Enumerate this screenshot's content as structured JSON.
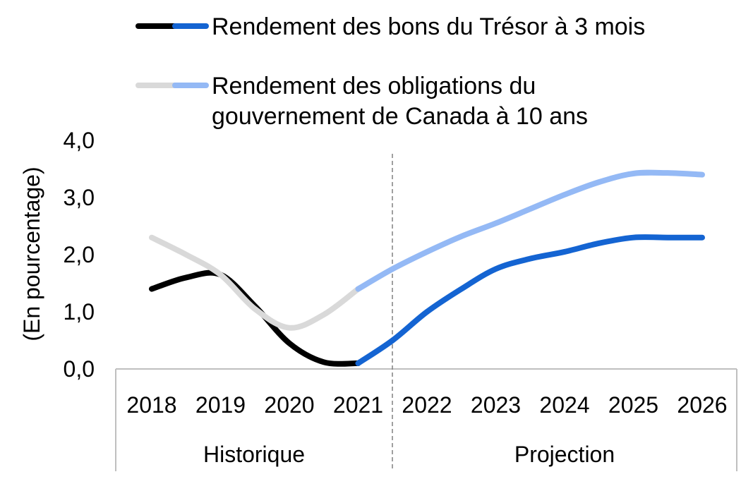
{
  "chart_data": {
    "type": "line",
    "categories": [
      "2018",
      "2019",
      "2020",
      "2021",
      "2022",
      "2023",
      "2024",
      "2025",
      "2026"
    ],
    "x": [
      2018,
      2019,
      2020,
      2021,
      2022,
      2023,
      2024,
      2025,
      2026
    ],
    "ylabel": "(En pourcentage)",
    "ylim": [
      0,
      4
    ],
    "yticks": [
      0,
      1,
      2,
      3,
      4
    ],
    "ytick_labels": [
      "0,0",
      "1,0",
      "2,0",
      "3,0",
      "4,0"
    ],
    "groups": [
      {
        "label": "Historique",
        "categories": [
          "2018",
          "2019",
          "2020",
          "2021"
        ]
      },
      {
        "label": "Projection",
        "categories": [
          "2022",
          "2023",
          "2024",
          "2025",
          "2026"
        ]
      }
    ],
    "projection_divider": "between 2021 and 2022",
    "legend_position": "top",
    "grid": false,
    "series": [
      {
        "name": "Rendement des bons du Trésor à 3 mois",
        "historical_color": "#000000",
        "projection_color": "#1464d2",
        "points": [
          [
            2018,
            1.4
          ],
          [
            2018.5,
            1.6
          ],
          [
            2019,
            1.65
          ],
          [
            2019.5,
            1.1
          ],
          [
            2020,
            0.45
          ],
          [
            2020.5,
            0.12
          ],
          [
            2021,
            0.1
          ],
          [
            2021.5,
            0.5
          ],
          [
            2022,
            1.0
          ],
          [
            2022.5,
            1.4
          ],
          [
            2023,
            1.75
          ],
          [
            2023.5,
            1.93
          ],
          [
            2024,
            2.05
          ],
          [
            2024.5,
            2.2
          ],
          [
            2025,
            2.3
          ],
          [
            2025.5,
            2.3
          ],
          [
            2026,
            2.3
          ]
        ]
      },
      {
        "name": "Rendement des obligations du gouvernement de Canada à 10 ans",
        "historical_color": "#d9d9d9",
        "projection_color": "#94b9f5",
        "points": [
          [
            2018,
            2.3
          ],
          [
            2018.5,
            2.0
          ],
          [
            2019,
            1.65
          ],
          [
            2019.5,
            1.05
          ],
          [
            2020,
            0.72
          ],
          [
            2020.5,
            0.95
          ],
          [
            2021,
            1.4
          ],
          [
            2021.5,
            1.75
          ],
          [
            2022,
            2.05
          ],
          [
            2022.5,
            2.32
          ],
          [
            2023,
            2.55
          ],
          [
            2023.5,
            2.8
          ],
          [
            2024,
            3.05
          ],
          [
            2024.5,
            3.27
          ],
          [
            2025,
            3.42
          ],
          [
            2025.5,
            3.43
          ],
          [
            2026,
            3.4
          ]
        ]
      }
    ]
  },
  "legend": {
    "items": [
      {
        "lines": [
          "Rendement des bons du Trésor à 3 mois"
        ]
      },
      {
        "lines": [
          "Rendement des obligations du",
          "gouvernement de Canada à 10 ans"
        ]
      }
    ]
  }
}
